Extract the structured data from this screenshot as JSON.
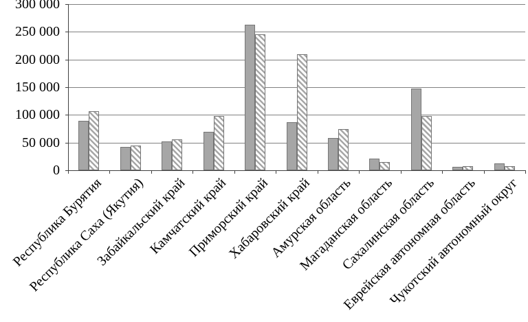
{
  "chart_data": {
    "type": "bar",
    "title": "",
    "xlabel": "",
    "ylabel": "",
    "categories": [
      "Республика Бурятия",
      "Республика Саха (Якутия)",
      "Забайкальский край",
      "Камчатский край",
      "Приморский край",
      "Хабаровский край",
      "Амурская область",
      "Магаданская область",
      "Сахалинская область",
      "Еврейская автономная область",
      "Чукотский автономный округ"
    ],
    "series": [
      {
        "name": "solid-gray",
        "style": "solid",
        "values": [
          89000,
          42000,
          52000,
          70000,
          263000,
          87000,
          58000,
          21000,
          148000,
          6000,
          12000
        ]
      },
      {
        "name": "hatched",
        "style": "hatched",
        "values": [
          107000,
          45000,
          56000,
          98000,
          245000,
          209000,
          75000,
          15000,
          98000,
          8000,
          8000
        ]
      }
    ],
    "ylim": [
      0,
      300000
    ],
    "ytick_step": 50000,
    "ytick_labels": [
      "0",
      "50 000",
      "100 000",
      "150 000",
      "200 000",
      "250 000",
      "300 000"
    ],
    "grid": true,
    "legend_position": "none",
    "colors": {
      "background": "#ffffff",
      "text": "#000000",
      "grid_line": "#808080",
      "axis_line": "#404040",
      "solid_fill": "#a6a6a6",
      "hatch_stripe": "#a6a6a6",
      "bar_border": "#757575"
    }
  }
}
